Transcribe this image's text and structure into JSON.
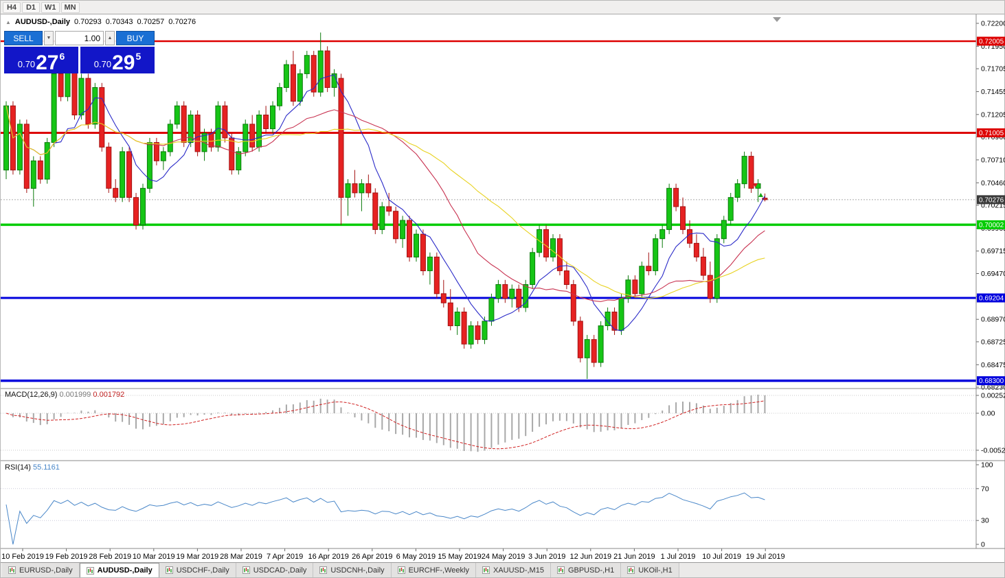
{
  "toolbar": {
    "timeframes": [
      "H4",
      "D1",
      "W1",
      "MN"
    ]
  },
  "chart_header": {
    "expand_icon": "▲",
    "symbol": "AUDUSD-,Daily",
    "open": "0.70293",
    "high": "0.70343",
    "low": "0.70257",
    "close": "0.70276"
  },
  "trade_panel": {
    "sell_label": "SELL",
    "buy_label": "BUY",
    "volume": "1.00",
    "volume_down_icon": "▼",
    "volume_up_icon": "▲",
    "sell_price": {
      "prefix": "0.70",
      "big": "27",
      "sup": "6"
    },
    "buy_price": {
      "prefix": "0.70",
      "big": "29",
      "sup": "5"
    }
  },
  "price_axis": {
    "labels": [
      "0.72200",
      "0.71950",
      "0.71705",
      "0.71455",
      "0.71205",
      "0.70960",
      "0.70710",
      "0.70460",
      "0.70215",
      "0.69965",
      "0.69715",
      "0.69470",
      "0.69220",
      "0.68970",
      "0.68725",
      "0.68475",
      "0.68230"
    ]
  },
  "levels": [
    {
      "label": "0.72005",
      "price": 0.72005,
      "color": "#dd0000",
      "width": 2.5
    },
    {
      "label": "0.71005",
      "price": 0.71005,
      "color": "#dd0000",
      "width": 3
    },
    {
      "label": "0.70002",
      "price": 0.70002,
      "color": "#00cc00",
      "width": 3.5
    },
    {
      "label": "0.69204",
      "price": 0.69204,
      "color": "#0000dd",
      "width": 3
    },
    {
      "label": "0.68300",
      "price": 0.683,
      "color": "#0000dd",
      "width": 3.5
    }
  ],
  "current_price": {
    "label": "0.70276",
    "value": 0.70276,
    "badge_color": "#3a3a3a"
  },
  "macd": {
    "name": "MACD(12,26,9)",
    "main_value": "0.001999",
    "signal_value": "0.001792",
    "axis": [
      {
        "label": "0.002522",
        "value": 0.002522
      },
      {
        "label": "0.00",
        "value": 0
      },
      {
        "label": "-0.005234",
        "value": -0.005234
      }
    ]
  },
  "rsi": {
    "name": "RSI(14)",
    "value": "55.1161",
    "axis": [
      {
        "label": "100",
        "value": 100
      },
      {
        "label": "70",
        "value": 70
      },
      {
        "label": "30",
        "value": 30
      },
      {
        "label": "0",
        "value": 0
      }
    ]
  },
  "date_axis": [
    "10 Feb 2019",
    "19 Feb 2019",
    "28 Feb 2019",
    "10 Mar 2019",
    "19 Mar 2019",
    "28 Mar 2019",
    "7 Apr 2019",
    "16 Apr 2019",
    "26 Apr 2019",
    "6 May 2019",
    "15 May 2019",
    "24 May 2019",
    "3 Jun 2019",
    "12 Jun 2019",
    "21 Jun 2019",
    "1 Jul 2019",
    "10 Jul 2019",
    "19 Jul 2019"
  ],
  "tabs": [
    {
      "label": "EURUSD-,Daily",
      "active": false
    },
    {
      "label": "AUDUSD-,Daily",
      "active": true
    },
    {
      "label": "USDCHF-,Daily",
      "active": false
    },
    {
      "label": "USDCAD-,Daily",
      "active": false
    },
    {
      "label": "USDCNH-,Daily",
      "active": false
    },
    {
      "label": "EURCHF-,Weekly",
      "active": false
    },
    {
      "label": "XAUUSD-,M15",
      "active": false
    },
    {
      "label": "GBPUSD-,H1",
      "active": false
    },
    {
      "label": "UKOil-,H1",
      "active": false
    }
  ],
  "chart_data": {
    "type": "candlestick",
    "symbol": "AUDUSD",
    "timeframe": "Daily",
    "price_range": [
      0.6823,
      0.722
    ],
    "indicators": {
      "macd": {
        "fast": 12,
        "slow": 26,
        "signal": 9
      },
      "rsi": {
        "period": 14
      }
    },
    "moving_averages": [
      {
        "period": 8,
        "color": "#2a2ac8"
      },
      {
        "period": 21,
        "color": "#c83250"
      },
      {
        "period": 34,
        "color": "#e8d220"
      }
    ],
    "colors": {
      "up": "#16c516",
      "up_stroke": "#0a7a0a",
      "down": "#e62222",
      "down_stroke": "#a31212",
      "macd_hist": "#a8a8a8",
      "macd_signal": "#d02020",
      "rsi_line": "#4886c8"
    },
    "candles": [
      [
        0.706,
        0.7135,
        0.705,
        0.713
      ],
      [
        0.713,
        0.7135,
        0.7055,
        0.706
      ],
      [
        0.706,
        0.7115,
        0.7055,
        0.711
      ],
      [
        0.711,
        0.7115,
        0.7035,
        0.704
      ],
      [
        0.704,
        0.7075,
        0.702,
        0.707
      ],
      [
        0.707,
        0.7075,
        0.7045,
        0.705
      ],
      [
        0.705,
        0.7095,
        0.7045,
        0.709
      ],
      [
        0.709,
        0.717,
        0.7085,
        0.7165
      ],
      [
        0.7165,
        0.7175,
        0.7135,
        0.714
      ],
      [
        0.714,
        0.718,
        0.7135,
        0.7175
      ],
      [
        0.7175,
        0.718,
        0.7115,
        0.712
      ],
      [
        0.712,
        0.7165,
        0.7115,
        0.716
      ],
      [
        0.716,
        0.7165,
        0.7105,
        0.711
      ],
      [
        0.711,
        0.7155,
        0.7105,
        0.715
      ],
      [
        0.715,
        0.7155,
        0.708,
        0.7085
      ],
      [
        0.7085,
        0.709,
        0.7035,
        0.704
      ],
      [
        0.704,
        0.705,
        0.7025,
        0.703
      ],
      [
        0.703,
        0.7085,
        0.7025,
        0.708
      ],
      [
        0.708,
        0.7085,
        0.7025,
        0.703
      ],
      [
        0.703,
        0.7035,
        0.6995,
        0.7
      ],
      [
        0.7,
        0.7045,
        0.6995,
        0.704
      ],
      [
        0.704,
        0.7095,
        0.7035,
        0.709
      ],
      [
        0.709,
        0.7095,
        0.7065,
        0.707
      ],
      [
        0.707,
        0.7085,
        0.706,
        0.708
      ],
      [
        0.708,
        0.7115,
        0.7075,
        0.711
      ],
      [
        0.711,
        0.7135,
        0.7105,
        0.713
      ],
      [
        0.713,
        0.7135,
        0.7085,
        0.709
      ],
      [
        0.709,
        0.7125,
        0.7085,
        0.712
      ],
      [
        0.712,
        0.7125,
        0.7075,
        0.708
      ],
      [
        0.708,
        0.7105,
        0.707,
        0.71
      ],
      [
        0.71,
        0.7105,
        0.708,
        0.7085
      ],
      [
        0.7085,
        0.7135,
        0.708,
        0.713
      ],
      [
        0.713,
        0.7135,
        0.709,
        0.7095
      ],
      [
        0.7095,
        0.71,
        0.7055,
        0.706
      ],
      [
        0.706,
        0.7085,
        0.7055,
        0.708
      ],
      [
        0.708,
        0.7115,
        0.7075,
        0.711
      ],
      [
        0.711,
        0.712,
        0.708,
        0.7085
      ],
      [
        0.7085,
        0.7125,
        0.708,
        0.712
      ],
      [
        0.712,
        0.713,
        0.71,
        0.7105
      ],
      [
        0.7105,
        0.7135,
        0.71,
        0.713
      ],
      [
        0.713,
        0.7155,
        0.7125,
        0.715
      ],
      [
        0.715,
        0.718,
        0.7145,
        0.7175
      ],
      [
        0.7175,
        0.719,
        0.713,
        0.7135
      ],
      [
        0.7135,
        0.717,
        0.713,
        0.7165
      ],
      [
        0.7165,
        0.719,
        0.716,
        0.7185
      ],
      [
        0.7185,
        0.719,
        0.714,
        0.7145
      ],
      [
        0.7145,
        0.721,
        0.714,
        0.719
      ],
      [
        0.719,
        0.7195,
        0.7145,
        0.715
      ],
      [
        0.715,
        0.717,
        0.714,
        0.7165
      ],
      [
        0.716,
        0.7165,
        0.7,
        0.703
      ],
      [
        0.703,
        0.705,
        0.701,
        0.7045
      ],
      [
        0.7045,
        0.706,
        0.703,
        0.7035
      ],
      [
        0.7035,
        0.705,
        0.7015,
        0.7045
      ],
      [
        0.7045,
        0.7055,
        0.703,
        0.7035
      ],
      [
        0.7035,
        0.704,
        0.699,
        0.6995
      ],
      [
        0.6995,
        0.7025,
        0.699,
        0.702
      ],
      [
        0.702,
        0.7035,
        0.701,
        0.7015
      ],
      [
        0.7015,
        0.702,
        0.698,
        0.6985
      ],
      [
        0.6985,
        0.701,
        0.6975,
        0.7005
      ],
      [
        0.7005,
        0.701,
        0.696,
        0.6965
      ],
      [
        0.6965,
        0.6995,
        0.696,
        0.699
      ],
      [
        0.699,
        0.6995,
        0.6945,
        0.695
      ],
      [
        0.695,
        0.697,
        0.6935,
        0.6965
      ],
      [
        0.6965,
        0.697,
        0.692,
        0.6925
      ],
      [
        0.6925,
        0.694,
        0.691,
        0.6915
      ],
      [
        0.6915,
        0.693,
        0.6885,
        0.689
      ],
      [
        0.689,
        0.691,
        0.688,
        0.6905
      ],
      [
        0.6905,
        0.691,
        0.6865,
        0.687
      ],
      [
        0.687,
        0.6895,
        0.6865,
        0.689
      ],
      [
        0.689,
        0.6895,
        0.687,
        0.6875
      ],
      [
        0.6875,
        0.69,
        0.687,
        0.6895
      ],
      [
        0.6895,
        0.6925,
        0.689,
        0.692
      ],
      [
        0.692,
        0.694,
        0.6915,
        0.6935
      ],
      [
        0.6935,
        0.694,
        0.6915,
        0.692
      ],
      [
        0.692,
        0.6935,
        0.691,
        0.693
      ],
      [
        0.693,
        0.6935,
        0.6905,
        0.691
      ],
      [
        0.691,
        0.694,
        0.6905,
        0.6935
      ],
      [
        0.6935,
        0.6975,
        0.693,
        0.697
      ],
      [
        0.697,
        0.7,
        0.6965,
        0.6995
      ],
      [
        0.6995,
        0.7,
        0.696,
        0.6965
      ],
      [
        0.6965,
        0.699,
        0.696,
        0.6985
      ],
      [
        0.6985,
        0.699,
        0.6945,
        0.695
      ],
      [
        0.695,
        0.696,
        0.693,
        0.6935
      ],
      [
        0.6935,
        0.694,
        0.689,
        0.6895
      ],
      [
        0.6895,
        0.69,
        0.685,
        0.6855
      ],
      [
        0.6855,
        0.688,
        0.6832,
        0.6875
      ],
      [
        0.6875,
        0.688,
        0.6845,
        0.685
      ],
      [
        0.685,
        0.6895,
        0.6845,
        0.689
      ],
      [
        0.689,
        0.691,
        0.6885,
        0.6905
      ],
      [
        0.6905,
        0.691,
        0.688,
        0.6885
      ],
      [
        0.6885,
        0.6925,
        0.688,
        0.692
      ],
      [
        0.692,
        0.6945,
        0.6915,
        0.694
      ],
      [
        0.694,
        0.6945,
        0.692,
        0.6925
      ],
      [
        0.6925,
        0.696,
        0.692,
        0.6955
      ],
      [
        0.6955,
        0.697,
        0.6945,
        0.695
      ],
      [
        0.695,
        0.699,
        0.6945,
        0.6985
      ],
      [
        0.6985,
        0.7,
        0.6975,
        0.6995
      ],
      [
        0.6995,
        0.7045,
        0.699,
        0.704
      ],
      [
        0.704,
        0.7045,
        0.7015,
        0.702
      ],
      [
        0.702,
        0.703,
        0.699,
        0.6995
      ],
      [
        0.6995,
        0.7005,
        0.6975,
        0.698
      ],
      [
        0.698,
        0.699,
        0.696,
        0.6965
      ],
      [
        0.6965,
        0.6975,
        0.694,
        0.6945
      ],
      [
        0.6945,
        0.696,
        0.6915,
        0.692
      ],
      [
        0.692,
        0.699,
        0.6915,
        0.6985
      ],
      [
        0.6985,
        0.701,
        0.698,
        0.7005
      ],
      [
        0.7005,
        0.7035,
        0.7,
        0.703
      ],
      [
        0.703,
        0.705,
        0.7025,
        0.7045
      ],
      [
        0.7045,
        0.708,
        0.704,
        0.7075
      ],
      [
        0.7075,
        0.708,
        0.7035,
        0.704
      ],
      [
        0.704,
        0.705,
        0.7025,
        0.7045
      ],
      [
        0.70293,
        0.70343,
        0.70257,
        0.70276
      ]
    ]
  }
}
